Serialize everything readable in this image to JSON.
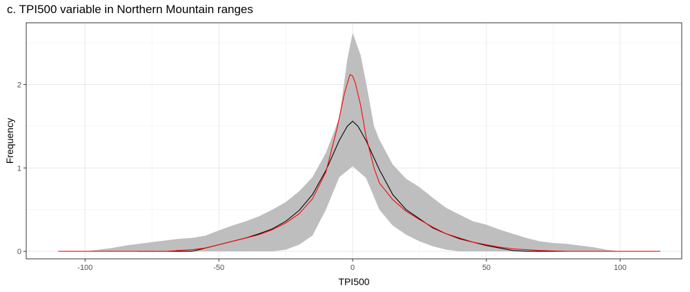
{
  "chart_data": {
    "type": "line",
    "title": "c. TPI500 variable in Northern Mountain ranges",
    "xlabel": "TPI500",
    "ylabel": "Frequency",
    "xlim": [
      -122,
      123
    ],
    "ylim": [
      -0.09,
      2.74
    ],
    "x_ticks": [
      -100,
      -50,
      0,
      50,
      100
    ],
    "x_tick_labels": [
      "-100",
      "-50",
      "0",
      "50",
      "100"
    ],
    "y_ticks": [
      0,
      1,
      2
    ],
    "y_tick_labels": [
      "0",
      "1",
      "2"
    ],
    "grid": true,
    "legend": "none",
    "band": {
      "color": "#bebebe",
      "upper": [
        [
          -100,
          0
        ],
        [
          -95,
          0.02
        ],
        [
          -90,
          0.04
        ],
        [
          -85,
          0.07
        ],
        [
          -80,
          0.09
        ],
        [
          -75,
          0.11
        ],
        [
          -70,
          0.13
        ],
        [
          -65,
          0.15
        ],
        [
          -60,
          0.16
        ],
        [
          -55,
          0.19
        ],
        [
          -50,
          0.25
        ],
        [
          -45,
          0.31
        ],
        [
          -40,
          0.36
        ],
        [
          -35,
          0.42
        ],
        [
          -30,
          0.5
        ],
        [
          -25,
          0.59
        ],
        [
          -20,
          0.72
        ],
        [
          -15,
          0.89
        ],
        [
          -10,
          1.18
        ],
        [
          -5,
          1.6
        ],
        [
          -2,
          2.3
        ],
        [
          0,
          2.62
        ],
        [
          3,
          2.35
        ],
        [
          5,
          2.03
        ],
        [
          8,
          1.5
        ],
        [
          10,
          1.34
        ],
        [
          15,
          1.04
        ],
        [
          20,
          0.87
        ],
        [
          25,
          0.77
        ],
        [
          30,
          0.64
        ],
        [
          35,
          0.52
        ],
        [
          40,
          0.44
        ],
        [
          45,
          0.36
        ],
        [
          50,
          0.32
        ],
        [
          55,
          0.26
        ],
        [
          60,
          0.21
        ],
        [
          65,
          0.16
        ],
        [
          70,
          0.12
        ],
        [
          75,
          0.1
        ],
        [
          80,
          0.09
        ],
        [
          85,
          0.07
        ],
        [
          90,
          0.05
        ],
        [
          95,
          0.02
        ],
        [
          100,
          0
        ]
      ],
      "lower": [
        [
          -100,
          0
        ],
        [
          -90,
          0
        ],
        [
          -80,
          0
        ],
        [
          -70,
          0
        ],
        [
          -60,
          0
        ],
        [
          -50,
          0
        ],
        [
          -40,
          0
        ],
        [
          -35,
          0
        ],
        [
          -30,
          0
        ],
        [
          -25,
          0.02
        ],
        [
          -20,
          0.08
        ],
        [
          -15,
          0.19
        ],
        [
          -10,
          0.5
        ],
        [
          -5,
          0.89
        ],
        [
          0,
          1.02
        ],
        [
          5,
          0.88
        ],
        [
          10,
          0.5
        ],
        [
          15,
          0.31
        ],
        [
          20,
          0.2
        ],
        [
          25,
          0.12
        ],
        [
          30,
          0.06
        ],
        [
          35,
          0.02
        ],
        [
          40,
          0
        ],
        [
          50,
          0
        ],
        [
          60,
          0
        ],
        [
          70,
          0
        ],
        [
          80,
          0
        ],
        [
          90,
          0
        ],
        [
          100,
          0
        ]
      ]
    },
    "series": [
      {
        "color": "#000000",
        "points": [
          [
            -80,
            0
          ],
          [
            -70,
            0
          ],
          [
            -60,
            0
          ],
          [
            -55,
            0.04
          ],
          [
            -50,
            0.08
          ],
          [
            -45,
            0.12
          ],
          [
            -40,
            0.16
          ],
          [
            -35,
            0.21
          ],
          [
            -30,
            0.27
          ],
          [
            -25,
            0.36
          ],
          [
            -20,
            0.49
          ],
          [
            -15,
            0.68
          ],
          [
            -10,
            0.97
          ],
          [
            -5,
            1.33
          ],
          [
            -2,
            1.5
          ],
          [
            0,
            1.56
          ],
          [
            2,
            1.5
          ],
          [
            5,
            1.33
          ],
          [
            10,
            0.98
          ],
          [
            15,
            0.68
          ],
          [
            20,
            0.5
          ],
          [
            25,
            0.39
          ],
          [
            30,
            0.28
          ],
          [
            35,
            0.21
          ],
          [
            40,
            0.15
          ],
          [
            45,
            0.11
          ],
          [
            50,
            0.07
          ],
          [
            55,
            0.04
          ],
          [
            60,
            0.01
          ],
          [
            65,
            0
          ],
          [
            70,
            0
          ],
          [
            80,
            0
          ]
        ]
      },
      {
        "color": "#ff0000",
        "points": [
          [
            -110,
            0
          ],
          [
            -100,
            0
          ],
          [
            -90,
            0
          ],
          [
            -80,
            0
          ],
          [
            -70,
            0
          ],
          [
            -60,
            0.02
          ],
          [
            -55,
            0.04
          ],
          [
            -50,
            0.08
          ],
          [
            -45,
            0.12
          ],
          [
            -40,
            0.16
          ],
          [
            -35,
            0.2
          ],
          [
            -30,
            0.26
          ],
          [
            -25,
            0.34
          ],
          [
            -20,
            0.45
          ],
          [
            -15,
            0.63
          ],
          [
            -10,
            0.95
          ],
          [
            -6,
            1.45
          ],
          [
            -3,
            1.9
          ],
          [
            -1,
            2.12
          ],
          [
            0,
            2.1
          ],
          [
            1,
            2.02
          ],
          [
            3,
            1.75
          ],
          [
            5,
            1.38
          ],
          [
            8,
            1.0
          ],
          [
            10,
            0.82
          ],
          [
            15,
            0.62
          ],
          [
            20,
            0.48
          ],
          [
            25,
            0.38
          ],
          [
            30,
            0.29
          ],
          [
            35,
            0.21
          ],
          [
            40,
            0.16
          ],
          [
            45,
            0.11
          ],
          [
            50,
            0.08
          ],
          [
            55,
            0.05
          ],
          [
            60,
            0.03
          ],
          [
            65,
            0.02
          ],
          [
            70,
            0.01
          ],
          [
            80,
            0
          ],
          [
            90,
            0
          ],
          [
            100,
            0
          ],
          [
            110,
            0
          ],
          [
            115,
            0
          ]
        ]
      }
    ]
  }
}
